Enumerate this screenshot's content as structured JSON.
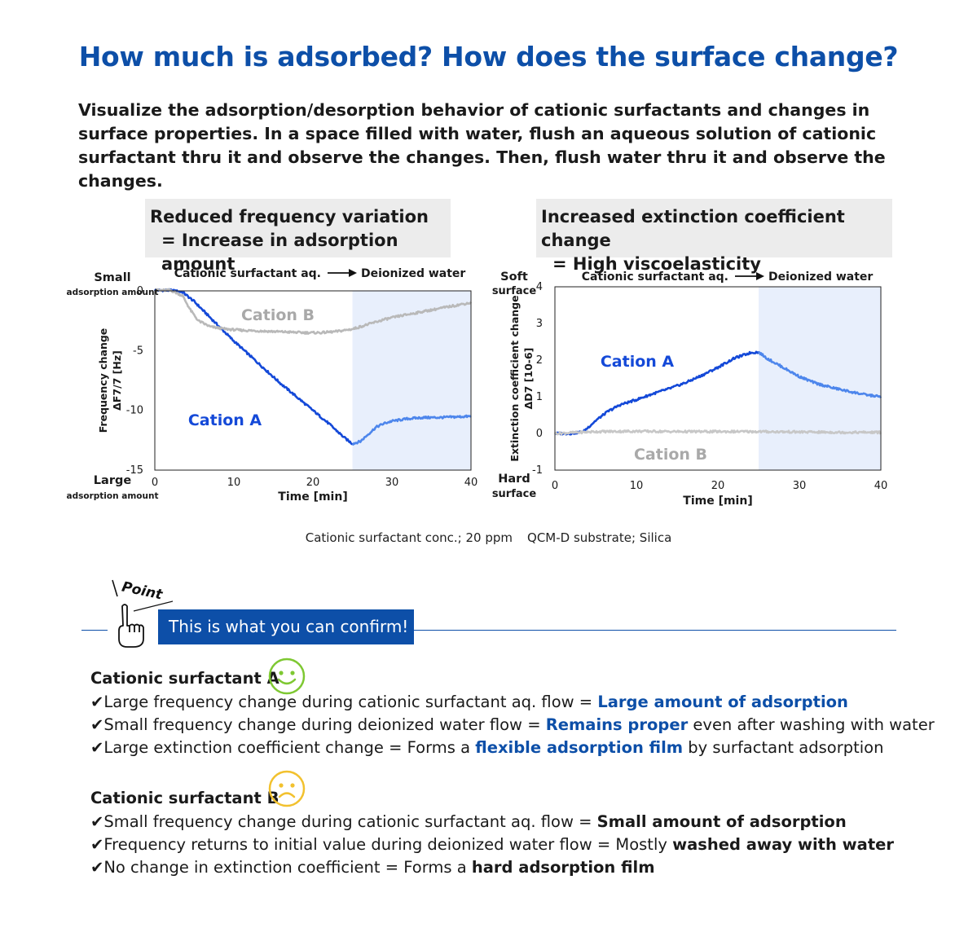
{
  "title": "How much is adsorbed? How does the surface change?",
  "intro": "Visualize the adsorption/desorption behavior of cationic surfactants and changes in surface properties. In a space filled with water, flush an aqueous solution of cationic surfactant thru it and observe the changes. Then, flush water thru it and observe the changes.",
  "callouts": {
    "left": {
      "line1": "Reduced frequency variation",
      "line2": "= Increase in adsorption amount"
    },
    "right": {
      "line1": "Increased extinction coefficient change",
      "line2": "= High viscoelasticity"
    }
  },
  "chart_data": [
    {
      "type": "line",
      "phase_labels": {
        "first": "Cationic surfactant aq.",
        "second": "Deionized water"
      },
      "washing_region_x": [
        25,
        40
      ],
      "xlabel": "Time [min]",
      "ylabel_line1": "Frequency change",
      "ylabel_line2": "ΔF7/7 [Hz]",
      "xlim": [
        0,
        40
      ],
      "ylim": [
        -15,
        0
      ],
      "xticks": [
        "0",
        "10",
        "20",
        "30",
        "40"
      ],
      "yticks": [
        "0",
        "-5",
        "-10",
        "-15"
      ],
      "y_top_label": "Small",
      "y_top_sublabel": "adsorption amount",
      "y_bottom_label": "Large",
      "y_bottom_sublabel": "adsorption amount",
      "series": [
        {
          "name": "Cation A",
          "color": "#1449d8",
          "color_after": "#4d86ec",
          "x": [
            0,
            2,
            3.5,
            5,
            6.5,
            8,
            10,
            12,
            14,
            16,
            18,
            20,
            22,
            24,
            25,
            26,
            27,
            28,
            29,
            30,
            32,
            34,
            36,
            38,
            40
          ],
          "y": [
            0.05,
            0.05,
            -0.1,
            -0.9,
            -1.9,
            -2.9,
            -4.2,
            -5.4,
            -6.6,
            -7.8,
            -8.9,
            -10.0,
            -11.1,
            -12.3,
            -12.8,
            -12.6,
            -12.0,
            -11.4,
            -11.1,
            -10.9,
            -10.7,
            -10.6,
            -10.6,
            -10.55,
            -10.5
          ]
        },
        {
          "name": "Cation B",
          "color": "#b9b9b9",
          "x": [
            0,
            2,
            3.5,
            4.5,
            5.5,
            7,
            9,
            11,
            13,
            15,
            17,
            19,
            21,
            23,
            25,
            27,
            29,
            31,
            33,
            35,
            37,
            39,
            40
          ],
          "y": [
            0.05,
            0.05,
            -0.4,
            -1.6,
            -2.5,
            -3.0,
            -3.2,
            -3.3,
            -3.35,
            -3.4,
            -3.45,
            -3.5,
            -3.5,
            -3.4,
            -3.2,
            -2.8,
            -2.4,
            -2.1,
            -1.85,
            -1.6,
            -1.35,
            -1.1,
            -1.0
          ]
        }
      ]
    },
    {
      "type": "line",
      "phase_labels": {
        "first": "Cationic surfactant aq.",
        "second": "Deionized water"
      },
      "washing_region_x": [
        25,
        40
      ],
      "xlabel": "Time [min]",
      "ylabel_line1": "Extinction coefficient change",
      "ylabel_line2": "ΔD7 [10-6]",
      "xlim": [
        0,
        40
      ],
      "ylim": [
        -1,
        4
      ],
      "xticks": [
        "0",
        "10",
        "20",
        "30",
        "40"
      ],
      "yticks": [
        "4",
        "3",
        "2",
        "1",
        "0",
        "-1"
      ],
      "y_top_label": "Soft",
      "y_top_sublabel": "surface",
      "y_bottom_label": "Hard",
      "y_bottom_sublabel": "surface",
      "series": [
        {
          "name": "Cation A",
          "color": "#1449d8",
          "color_after": "#4d86ec",
          "x": [
            0,
            2,
            3.5,
            5,
            6.5,
            8,
            10,
            12,
            14,
            16,
            18,
            20,
            22,
            24,
            25,
            26,
            28,
            30,
            32,
            34,
            36,
            38,
            40
          ],
          "y": [
            0.0,
            0.0,
            0.05,
            0.35,
            0.6,
            0.78,
            0.92,
            1.08,
            1.22,
            1.38,
            1.58,
            1.8,
            2.05,
            2.2,
            2.22,
            2.05,
            1.8,
            1.55,
            1.37,
            1.25,
            1.15,
            1.06,
            1.0
          ]
        },
        {
          "name": "Cation B",
          "color": "#c7c7c7",
          "x": [
            0,
            5,
            10,
            15,
            20,
            25,
            30,
            35,
            40
          ],
          "y": [
            0.0,
            0.05,
            0.06,
            0.05,
            0.05,
            0.05,
            0.04,
            0.03,
            0.03
          ]
        }
      ]
    }
  ],
  "caption": {
    "conc": "Cationic surfactant conc.; 20 ppm",
    "substrate": "QCM-D substrate; Silica"
  },
  "point": {
    "label": "Point",
    "box": "This is what you can confirm!"
  },
  "colors": {
    "accent": "#0d4fa8",
    "cationA": "#1449d8",
    "cationB": "#b9b9b9",
    "washing_region": "#e8effc",
    "smile": "#7ec832",
    "frown": "#f2c12e"
  },
  "sections": [
    {
      "title": "Cationic surfactant A",
      "face": "smile-icon",
      "items": [
        {
          "check": "✔",
          "pre": "Large frequency change during cationic surfactant aq. flow = ",
          "hl": "Large amount of adsorption",
          "post": ""
        },
        {
          "check": "✔",
          "pre": "Small frequency change during deionized water flow = ",
          "hl": "Remains proper",
          "post": " even after washing with water"
        },
        {
          "check": "✔",
          "pre": "Large extinction coefficient change = Forms a ",
          "hl": "flexible adsorption film",
          "post": " by surfactant adsorption"
        }
      ]
    },
    {
      "title": "Cationic surfactant B",
      "face": "frown-icon",
      "items": [
        {
          "check": "✔",
          "pre": "Small frequency change during cationic surfactant aq. flow = ",
          "hl": "Small amount of adsorption",
          "post": ""
        },
        {
          "check": "✔",
          "pre": "Frequency returns to initial value during deionized water flow = Mostly ",
          "hl": "washed away with water",
          "post": ""
        },
        {
          "check": "✔",
          "pre": "No change in extinction coefficient = Forms a ",
          "hl": "hard adsorption film",
          "post": ""
        }
      ]
    }
  ]
}
